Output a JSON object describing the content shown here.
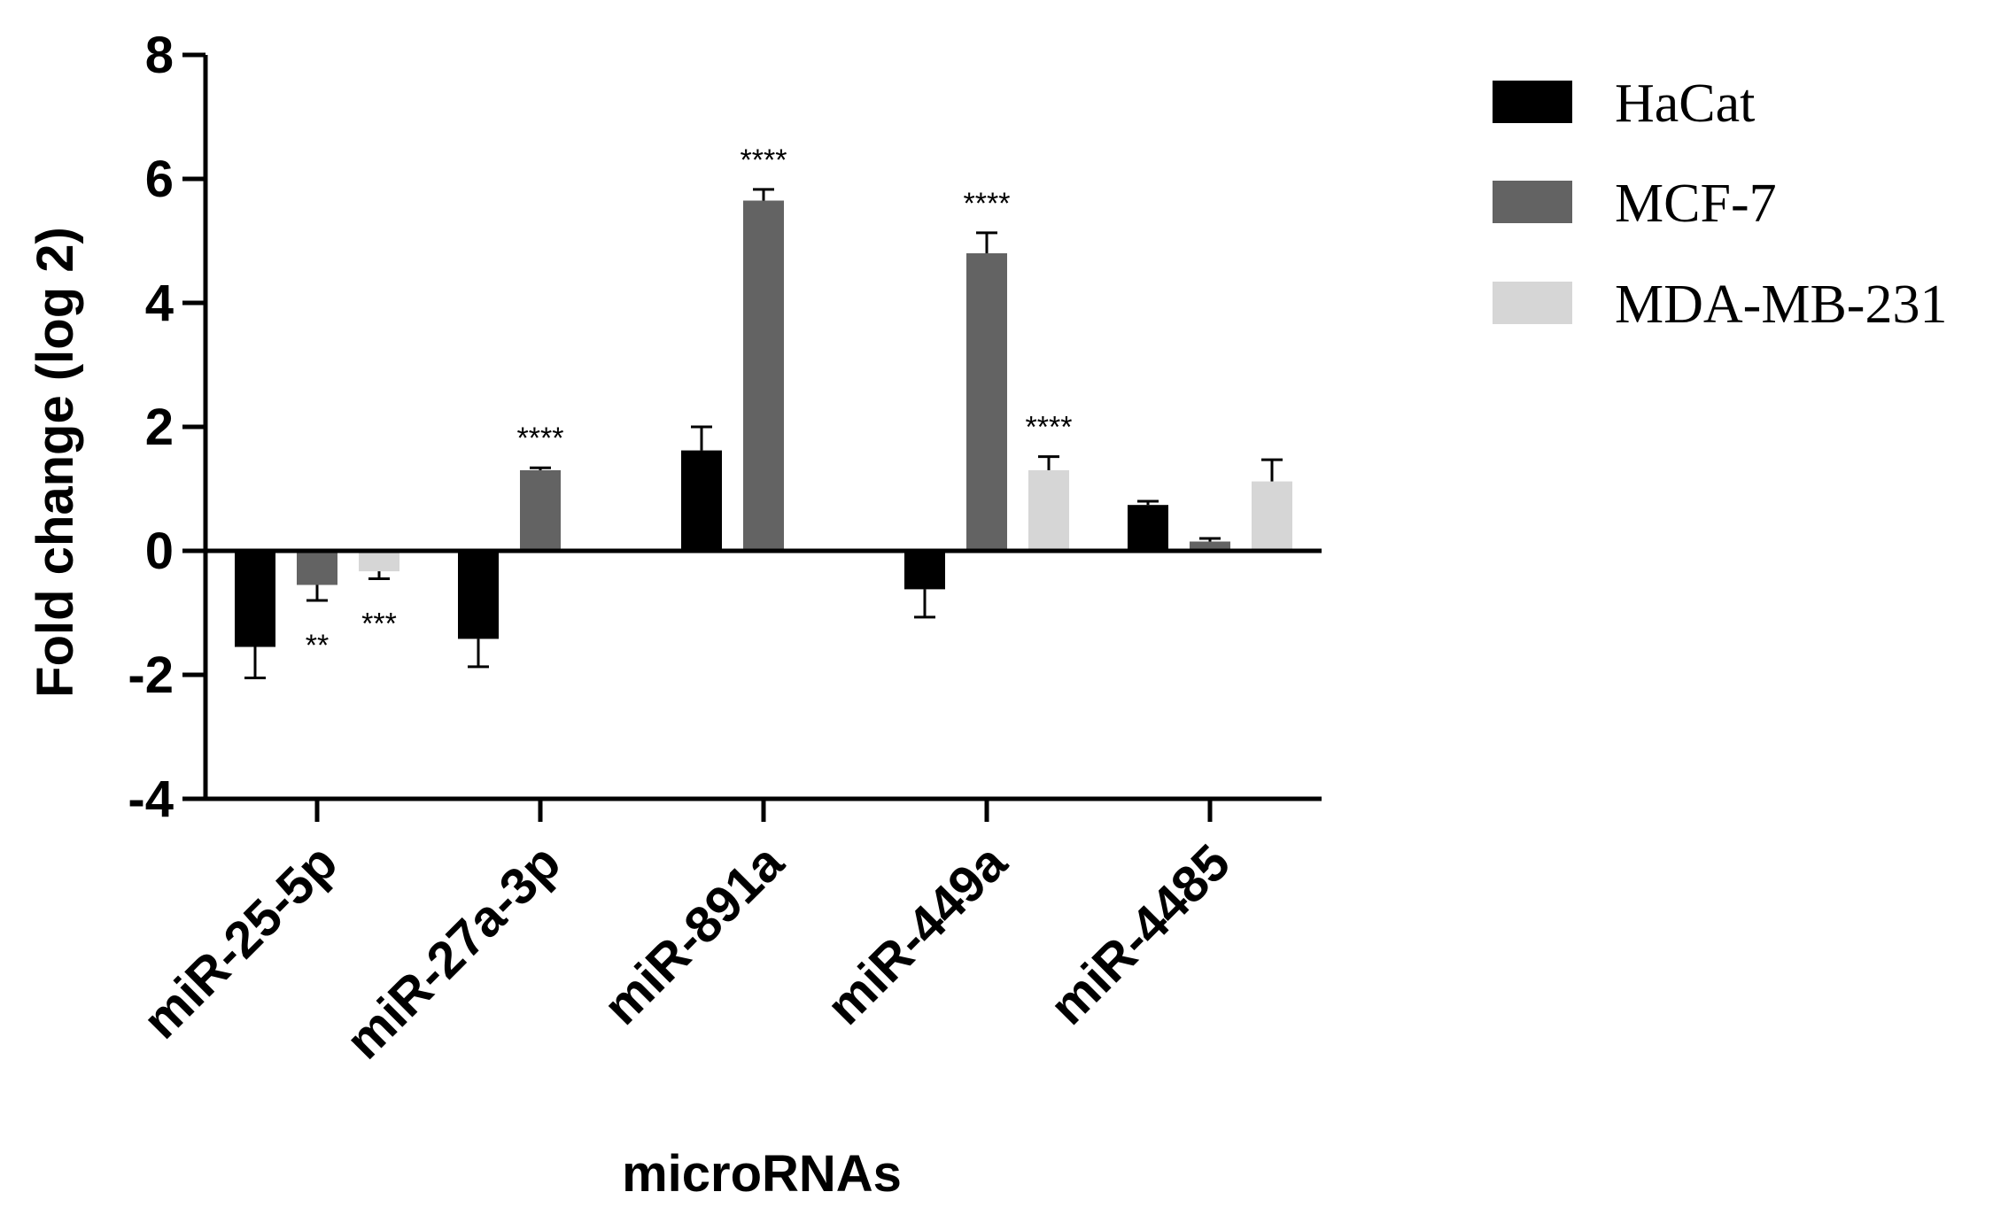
{
  "chart_data": {
    "type": "bar",
    "title": "",
    "xlabel": "microRNAs",
    "ylabel": "Fold change (log 2)",
    "ylim": [
      -4,
      8
    ],
    "yticks": [
      "-4",
      "-2",
      "0",
      "2",
      "4",
      "6",
      "8"
    ],
    "grid": false,
    "legend_position": "top-right",
    "categories": [
      "miR-25-5p",
      "miR-27a-3p",
      "miR-891a",
      "miR-449a",
      "miR-4485"
    ],
    "series": [
      {
        "name": "HaCat",
        "color": "#000000",
        "values": [
          -1.55,
          -1.42,
          1.62,
          -0.62,
          0.74
        ],
        "errors": [
          0.5,
          0.45,
          0.38,
          0.45,
          0.06
        ],
        "stars": [
          "",
          "",
          "",
          "",
          ""
        ]
      },
      {
        "name": "MCF-7",
        "color": "#636363",
        "values": [
          -0.55,
          1.3,
          5.65,
          4.8,
          0.15
        ],
        "errors": [
          0.25,
          0.04,
          0.18,
          0.33,
          0.05
        ],
        "stars": [
          "**",
          "****",
          "****",
          "****",
          ""
        ]
      },
      {
        "name": "MDA-MB-231",
        "color": "#d6d6d6",
        "values": [
          -0.33,
          null,
          null,
          1.3,
          1.12
        ],
        "errors": [
          0.12,
          null,
          null,
          0.22,
          0.35
        ],
        "stars": [
          "***",
          "",
          "",
          "****",
          ""
        ]
      }
    ]
  }
}
